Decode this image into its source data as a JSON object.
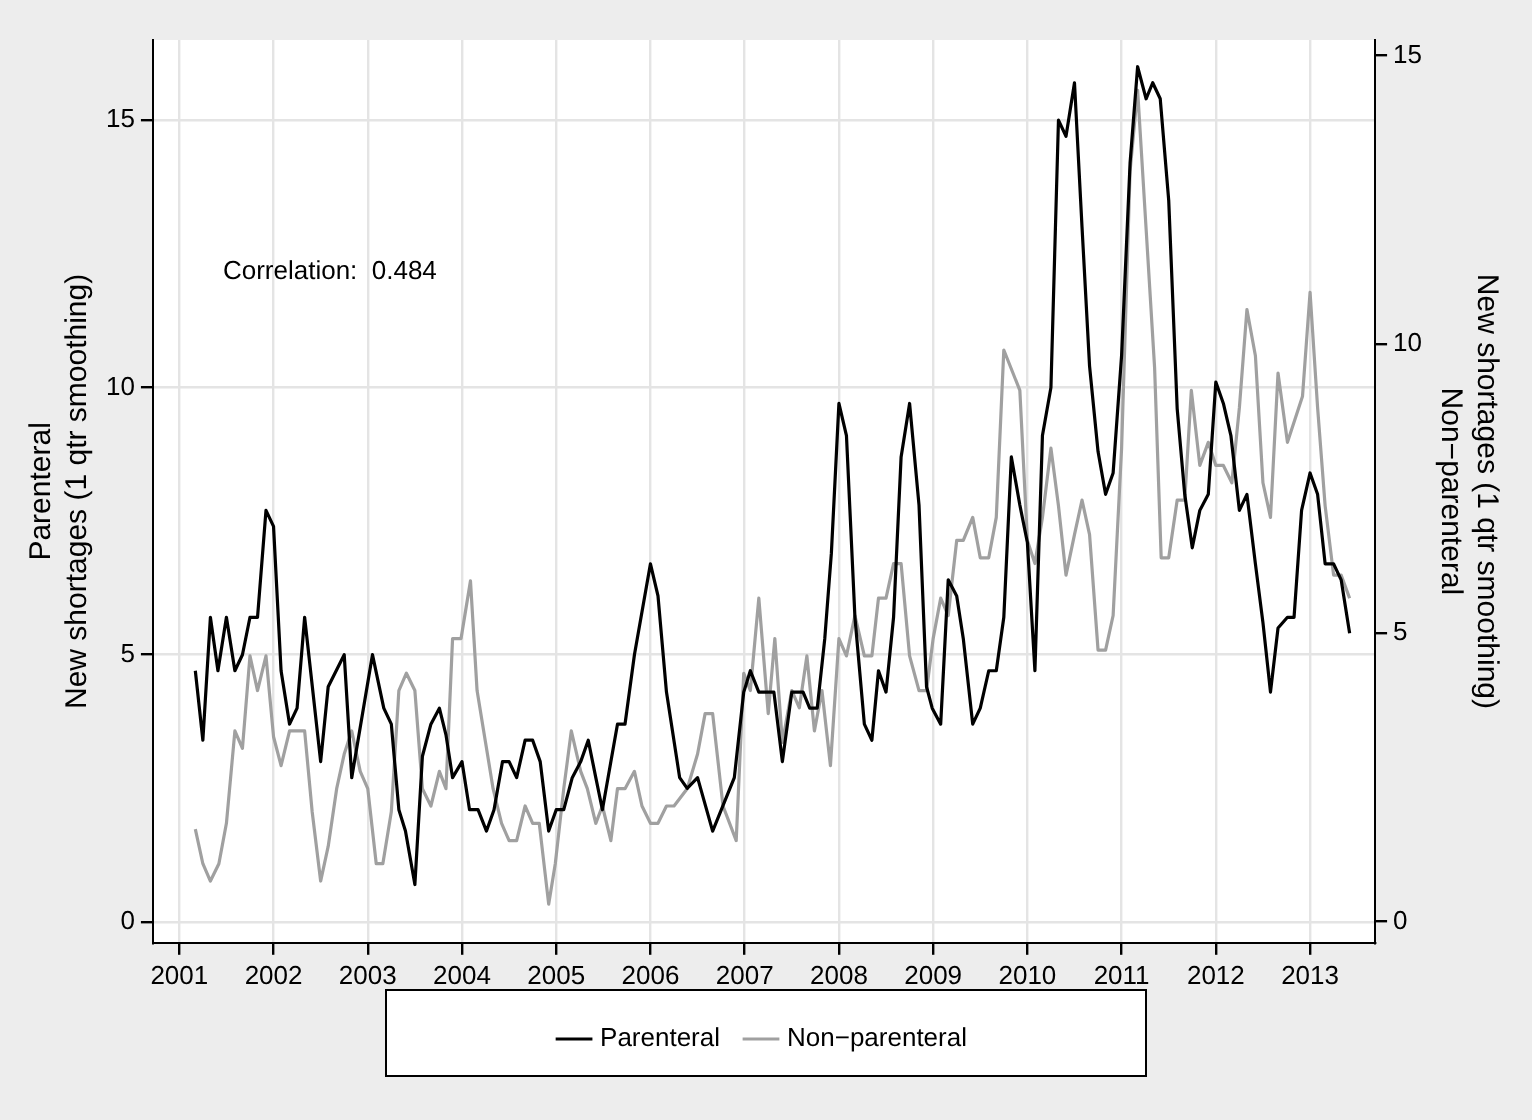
{
  "chart_data": {
    "type": "line",
    "ylabel": "Parenteral\nNew shortages (1 qtr smoothing)",
    "y2label": "New shortages (1 qtr smoothing)\nNon−parenteral",
    "annotations": [
      "Correlation:  0.484"
    ],
    "xlim": [
      2000.72,
      2013.69
    ],
    "xticks": [
      2001,
      2002,
      2003,
      2004,
      2005,
      2006,
      2007,
      2008,
      2009,
      2010,
      2011,
      2012,
      2013
    ],
    "ylim": [
      -0.39,
      16.5
    ],
    "yticks": [
      0,
      5,
      10,
      15
    ],
    "y2lim": [
      -0.37,
      15.27
    ],
    "y2ticks": [
      0,
      5,
      10,
      15
    ],
    "grid": true,
    "legend": "bottom",
    "marker": "none",
    "line_style": "solid",
    "series": [
      {
        "name": "Parenteral",
        "color": "#000000",
        "x": [
          2001.17,
          2001.25,
          2001.33,
          2001.41,
          2001.5,
          2001.59,
          2001.67,
          2001.75,
          2001.83,
          2001.92,
          2002.0,
          2002.08,
          2002.17,
          2002.25,
          2002.33,
          2002.5,
          2002.58,
          2002.75,
          2002.83,
          2003.05,
          2003.17,
          2003.25,
          2003.33,
          2003.4,
          2003.5,
          2003.58,
          2003.67,
          2003.76,
          2003.83,
          2003.9,
          2004.0,
          2004.08,
          2004.17,
          2004.26,
          2004.34,
          2004.43,
          2004.5,
          2004.58,
          2004.67,
          2004.75,
          2004.83,
          2004.92,
          2005.0,
          2005.08,
          2005.17,
          2005.26,
          2005.34,
          2005.42,
          2005.49,
          2005.65,
          2005.73,
          2005.83,
          2006.0,
          2006.08,
          2006.17,
          2006.31,
          2006.39,
          2006.5,
          2006.66,
          2006.89,
          2006.99,
          2007.06,
          2007.15,
          2007.31,
          2007.4,
          2007.5,
          2007.62,
          2007.69,
          2007.77,
          2007.85,
          2007.92,
          2008.0,
          2008.08,
          2008.17,
          2008.27,
          2008.35,
          2008.42,
          2008.5,
          2008.58,
          2008.66,
          2008.75,
          2008.85,
          2008.93,
          2008.99,
          2009.08,
          2009.16,
          2009.25,
          2009.32,
          2009.42,
          2009.5,
          2009.59,
          2009.67,
          2009.75,
          2009.83,
          2009.92,
          2010.0,
          2010.08,
          2010.16,
          2010.25,
          2010.33,
          2010.41,
          2010.5,
          2010.58,
          2010.66,
          2010.75,
          2010.83,
          2010.91,
          2011.0,
          2011.09,
          2011.17,
          2011.26,
          2011.33,
          2011.41,
          2011.5,
          2011.59,
          2011.67,
          2011.75,
          2011.83,
          2011.92,
          2012.0,
          2012.08,
          2012.16,
          2012.25,
          2012.33,
          2012.42,
          2012.5,
          2012.58,
          2012.66,
          2012.76,
          2012.83,
          2012.91,
          2013.0,
          2013.08,
          2013.16,
          2013.25,
          2013.33,
          2013.42
        ],
        "values": [
          4.7,
          3.4,
          5.7,
          4.7,
          5.7,
          4.7,
          5.0,
          5.7,
          5.7,
          7.7,
          7.4,
          4.7,
          3.7,
          4.0,
          5.7,
          3.0,
          4.4,
          5.0,
          2.7,
          5.0,
          4.0,
          3.7,
          2.1,
          1.7,
          0.7,
          3.1,
          3.7,
          4.0,
          3.5,
          2.7,
          3.0,
          2.1,
          2.1,
          1.7,
          2.1,
          3.0,
          3.0,
          2.7,
          3.4,
          3.4,
          3.0,
          1.7,
          2.1,
          2.1,
          2.7,
          3.0,
          3.4,
          2.7,
          2.1,
          3.7,
          3.7,
          5.0,
          6.7,
          6.1,
          4.3,
          2.7,
          2.5,
          2.7,
          1.7,
          2.7,
          4.3,
          4.7,
          4.3,
          4.3,
          3.0,
          4.3,
          4.3,
          4.0,
          4.0,
          5.3,
          6.9,
          9.7,
          9.1,
          5.7,
          3.7,
          3.4,
          4.7,
          4.3,
          5.7,
          8.7,
          9.7,
          7.8,
          4.4,
          4.0,
          3.7,
          6.4,
          6.1,
          5.3,
          3.7,
          4.0,
          4.7,
          4.7,
          5.7,
          8.7,
          7.8,
          7.1,
          4.7,
          9.1,
          10.0,
          15.0,
          14.7,
          15.7,
          13.0,
          10.4,
          8.8,
          8.0,
          8.4,
          10.6,
          14.2,
          16.0,
          15.4,
          15.7,
          15.4,
          13.5,
          9.6,
          8.0,
          7.0,
          7.7,
          8.0,
          10.1,
          9.7,
          9.1,
          7.7,
          8.0,
          6.7,
          5.6,
          4.3,
          5.5,
          5.7,
          5.7,
          7.7,
          8.4,
          8.0,
          6.7,
          6.7,
          6.4,
          5.4
        ]
      },
      {
        "name": "Non−parenteral",
        "color": "#a0a0a0",
        "axis": "y2",
        "x": [
          2001.17,
          2001.25,
          2001.33,
          2001.42,
          2001.5,
          2001.59,
          2001.67,
          2001.75,
          2001.83,
          2001.92,
          2002.0,
          2002.08,
          2002.17,
          2002.33,
          2002.41,
          2002.5,
          2002.58,
          2002.67,
          2002.75,
          2002.83,
          2002.92,
          2003.0,
          2003.09,
          2003.16,
          2003.25,
          2003.33,
          2003.41,
          2003.5,
          2003.58,
          2003.67,
          2003.76,
          2003.83,
          2003.9,
          2003.99,
          2004.09,
          2004.16,
          2004.25,
          2004.33,
          2004.42,
          2004.5,
          2004.58,
          2004.67,
          2004.75,
          2004.82,
          2004.92,
          2004.99,
          2005.08,
          2005.16,
          2005.26,
          2005.33,
          2005.42,
          2005.49,
          2005.58,
          2005.65,
          2005.73,
          2005.83,
          2005.91,
          2006.0,
          2006.08,
          2006.17,
          2006.25,
          2006.39,
          2006.5,
          2006.58,
          2006.66,
          2006.77,
          2006.91,
          2006.99,
          2007.06,
          2007.15,
          2007.25,
          2007.32,
          2007.4,
          2007.5,
          2007.58,
          2007.66,
          2007.74,
          2007.82,
          2007.91,
          2008.0,
          2008.08,
          2008.17,
          2008.27,
          2008.35,
          2008.42,
          2008.5,
          2008.58,
          2008.66,
          2008.75,
          2008.85,
          2008.93,
          2009.0,
          2009.08,
          2009.16,
          2009.25,
          2009.32,
          2009.42,
          2009.5,
          2009.59,
          2009.67,
          2009.75,
          2009.92,
          2010.0,
          2010.08,
          2010.16,
          2010.25,
          2010.33,
          2010.41,
          2010.5,
          2010.58,
          2010.66,
          2010.75,
          2010.83,
          2010.91,
          2011.0,
          2011.09,
          2011.17,
          2011.26,
          2011.35,
          2011.42,
          2011.5,
          2011.59,
          2011.67,
          2011.74,
          2011.83,
          2011.92,
          2012.0,
          2012.08,
          2012.17,
          2012.25,
          2012.33,
          2012.42,
          2012.5,
          2012.58,
          2012.66,
          2012.76,
          2012.92,
          2013.0,
          2013.08,
          2013.16,
          2013.25,
          2013.33,
          2013.42
        ],
        "values": [
          1.6,
          1.0,
          0.7,
          1.0,
          1.7,
          3.3,
          3.0,
          4.6,
          4.0,
          4.6,
          3.2,
          2.7,
          3.3,
          3.3,
          1.9,
          0.7,
          1.3,
          2.3,
          2.9,
          3.3,
          2.6,
          2.3,
          1.0,
          1.0,
          1.9,
          4.0,
          4.3,
          4.0,
          2.3,
          2.0,
          2.6,
          2.3,
          4.9,
          4.9,
          5.9,
          4.0,
          3.1,
          2.3,
          1.7,
          1.4,
          1.4,
          2.0,
          1.7,
          1.7,
          0.3,
          1.0,
          2.3,
          3.3,
          2.6,
          2.3,
          1.7,
          2.0,
          1.4,
          2.3,
          2.3,
          2.6,
          2.0,
          1.7,
          1.7,
          2.0,
          2.0,
          2.3,
          2.9,
          3.6,
          3.6,
          2.0,
          1.4,
          4.3,
          4.0,
          5.6,
          3.6,
          4.9,
          3.1,
          4.0,
          3.7,
          4.6,
          3.3,
          4.0,
          2.7,
          4.9,
          4.6,
          5.3,
          4.6,
          4.6,
          5.6,
          5.6,
          6.2,
          6.2,
          4.6,
          4.0,
          4.0,
          4.9,
          5.6,
          5.3,
          6.6,
          6.6,
          7.0,
          6.3,
          6.3,
          7.0,
          9.9,
          9.2,
          6.6,
          6.2,
          7.0,
          8.2,
          7.2,
          6.0,
          6.7,
          7.3,
          6.7,
          4.7,
          4.7,
          5.3,
          8.2,
          13.0,
          14.4,
          12.0,
          9.6,
          6.3,
          6.3,
          7.3,
          7.3,
          9.2,
          7.9,
          8.3,
          7.9,
          7.9,
          7.6,
          8.9,
          10.6,
          9.8,
          7.6,
          7.0,
          9.5,
          8.3,
          9.1,
          10.9,
          8.9,
          7.2,
          6.0,
          6.0,
          5.6
        ]
      }
    ]
  }
}
